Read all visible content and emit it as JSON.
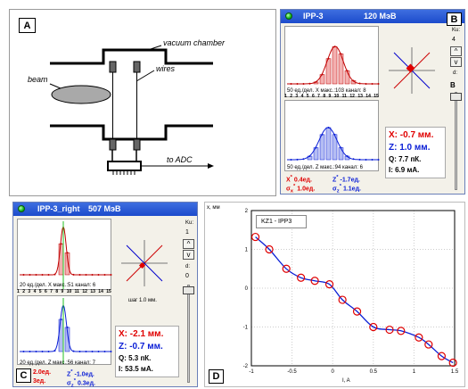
{
  "panel_a": {
    "tag": "A",
    "vacuum_label": "vacuum chamber",
    "beam_label": "beam",
    "wires_label": "wires",
    "adc_label": "to ADC"
  },
  "panel_b": {
    "tag": "B",
    "title": "IPP-3",
    "energy": "120 МэВ",
    "ku_label": "Ku:",
    "ku_value": "4",
    "d_label": "d:",
    "b_inner": "B",
    "x_caption": "50 ед./дел. X макс.:103 канал: 8",
    "z_caption": "50 ед./дел. Z макс.:94 канал: 6",
    "channels": [
      "1",
      "2",
      "3",
      "4",
      "5",
      "6",
      "7",
      "8",
      "9",
      "10",
      "11",
      "12",
      "13",
      "14",
      "15"
    ],
    "x_star": "X",
    "x_star_val": "0.4ед.",
    "sx_val": "1.0ед.",
    "z_star": "Z",
    "z_star_val": "-1.7ед.",
    "sz_val": "1.1ед.",
    "x_mm": "X: -0.7 мм.",
    "z_mm": "Z: 1.0 мм.",
    "q": "Q: 7.7 пК.",
    "i": "I: 6.9 мА."
  },
  "panel_c": {
    "tag": "C",
    "title": "IPP-3_right",
    "energy": "507 МэВ",
    "ku_label": "Ku:",
    "ku_value": "1",
    "d_label": "d:",
    "d_value": "0",
    "step": "шаг 1.0 мм.",
    "x_caption": "20 ед./дел. X макс.:51 канал: 6",
    "z_caption": "20 ед./дел. Z макс.:56 канал: 7",
    "channels": [
      "1",
      "2",
      "3",
      "4",
      "5",
      "6",
      "7",
      "8",
      "9",
      "10",
      "11",
      "12",
      "13",
      "14",
      "15"
    ],
    "x_star_val": "2.0ед.",
    "sx_val": "3ед.",
    "z_star_val": "-1.0ед.",
    "sz_val": "0.3ед.",
    "x_mm": "X: -2.1 мм.",
    "z_mm": "Z: -0.7 мм.",
    "q": "Q: 5.3 пК.",
    "i": "I: 53.5 мА."
  },
  "panel_d": {
    "tag": "D",
    "legend": "KZ1 - IPP3",
    "ylabel": "x, мм",
    "xlabel": "I, A"
  },
  "colors": {
    "red": "#e00000",
    "blue": "#0a1ed6",
    "title_blue": "#1c4bcc"
  },
  "chart_data": {
    "type": "scatter",
    "title": "",
    "xlabel": "I, A",
    "ylabel": "x, мм",
    "xlim": [
      -1,
      1.5
    ],
    "ylim": [
      -2,
      2
    ],
    "xticks": [
      "-1",
      "-0.5",
      "0",
      "0.5",
      "1",
      "1.5"
    ],
    "yticks": [
      "2",
      "1",
      "0",
      "-1",
      "-2"
    ],
    "series": [
      {
        "name": "KZ1 - IPP3",
        "x": [
          -0.95,
          -0.78,
          -0.57,
          -0.39,
          -0.22,
          -0.04,
          0.12,
          0.3,
          0.5,
          0.7,
          0.84,
          1.06,
          1.18,
          1.34,
          1.48
        ],
        "y": [
          1.32,
          1.0,
          0.5,
          0.27,
          0.19,
          0.1,
          -0.3,
          -0.6,
          -1.0,
          -1.07,
          -1.1,
          -1.27,
          -1.45,
          -1.75,
          -1.92
        ]
      }
    ]
  }
}
